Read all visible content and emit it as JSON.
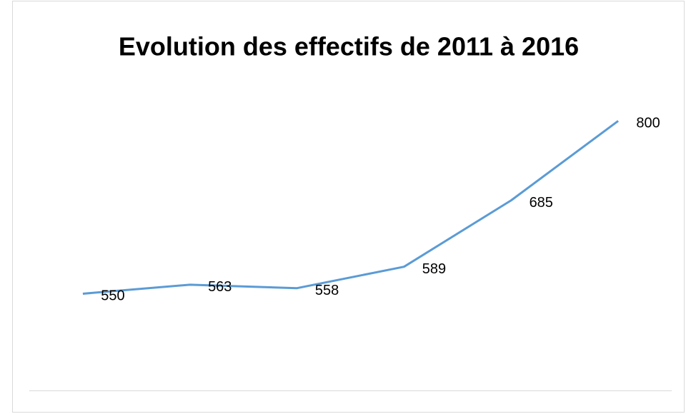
{
  "chart_data": {
    "type": "line",
    "title": "Evolution des effectifs de 2011 à 2016",
    "categories": [
      null,
      null,
      null,
      null,
      null,
      null
    ],
    "series": [
      {
        "color": "#5b9bd5",
        "values": [
          550,
          563,
          558,
          589,
          685,
          800
        ]
      }
    ],
    "ylim": [
      410,
      850
    ]
  }
}
